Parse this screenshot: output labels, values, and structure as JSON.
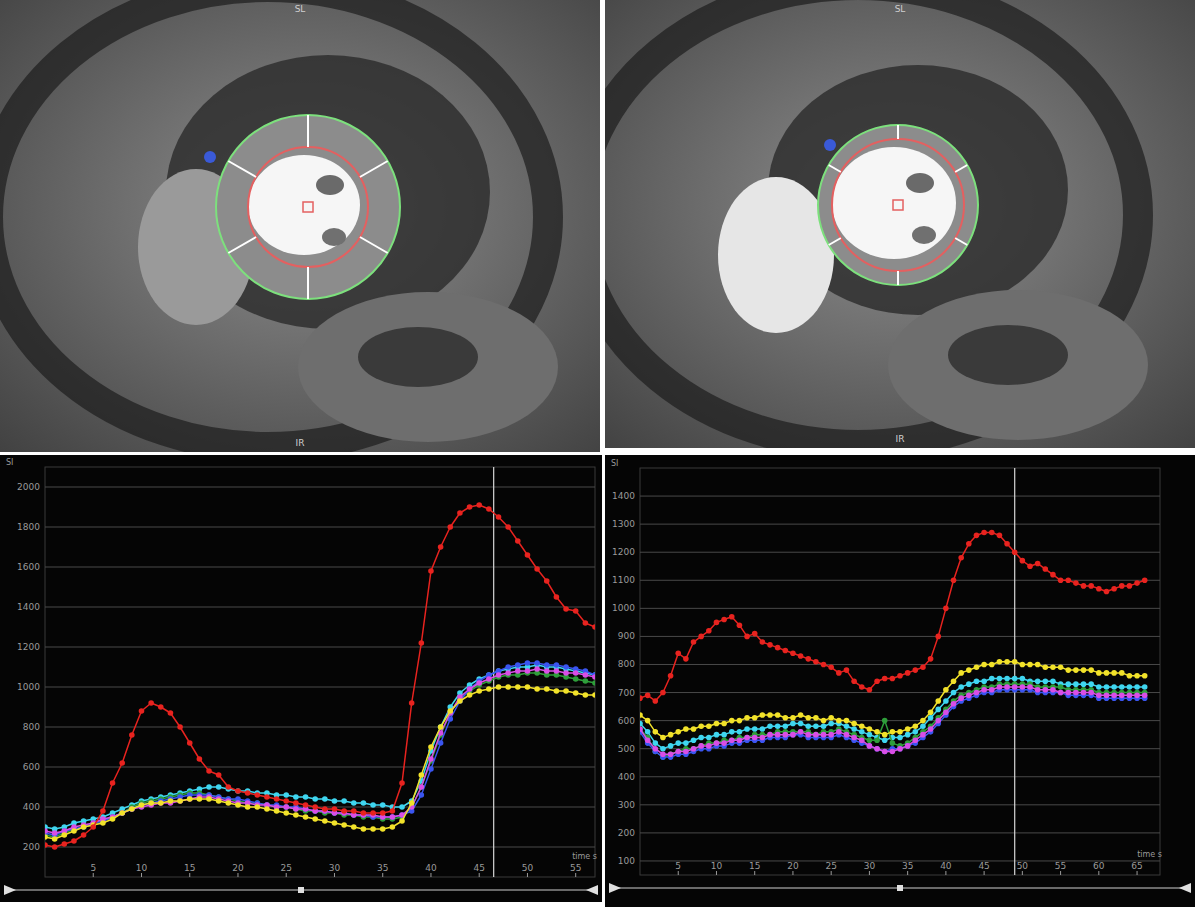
{
  "images": [
    {
      "labels": [
        "SL",
        "IR"
      ]
    },
    {
      "labels": [
        "SL",
        "IR"
      ]
    }
  ],
  "chart_data": [
    {
      "type": "line",
      "marker": "circle",
      "grid": true,
      "y_label": "SI",
      "x_label": "time s",
      "cursor_x": 46.5,
      "xlim": [
        0,
        57
      ],
      "xticks": [
        5,
        10,
        15,
        20,
        25,
        30,
        35,
        40,
        45,
        50,
        55
      ],
      "ylim": [
        50,
        2100
      ],
      "yticks": [
        200,
        400,
        600,
        800,
        1000,
        1200,
        1400,
        1600,
        1800,
        2000
      ],
      "x": [
        0,
        1,
        2,
        3,
        4,
        5,
        6,
        7,
        8,
        9,
        10,
        11,
        12,
        13,
        14,
        15,
        16,
        17,
        18,
        19,
        20,
        21,
        22,
        23,
        24,
        25,
        26,
        27,
        28,
        29,
        30,
        31,
        32,
        33,
        34,
        35,
        36,
        37,
        38,
        39,
        40,
        41,
        42,
        43,
        44,
        45,
        46,
        47,
        48,
        49,
        50,
        51,
        52,
        53,
        54,
        55,
        56,
        57
      ],
      "series": [
        {
          "color": "#3fd6f0",
          "values": [
            300,
            290,
            300,
            320,
            330,
            340,
            350,
            370,
            390,
            410,
            430,
            440,
            450,
            460,
            470,
            480,
            490,
            500,
            500,
            490,
            480,
            480,
            470,
            470,
            460,
            460,
            450,
            450,
            440,
            440,
            430,
            430,
            420,
            420,
            410,
            410,
            400,
            400,
            430,
            530,
            680,
            800,
            900,
            970,
            1010,
            1040,
            1060,
            1080,
            1090,
            1100,
            1100,
            1110,
            1100,
            1100,
            1090,
            1080,
            1070,
            1060
          ]
        },
        {
          "color": "#2e9e3a",
          "values": [
            260,
            250,
            270,
            290,
            300,
            310,
            330,
            350,
            370,
            400,
            420,
            430,
            440,
            450,
            460,
            470,
            470,
            460,
            450,
            440,
            430,
            420,
            420,
            410,
            400,
            400,
            390,
            380,
            380,
            370,
            370,
            360,
            360,
            350,
            350,
            340,
            340,
            350,
            400,
            500,
            630,
            760,
            870,
            940,
            980,
            1010,
            1030,
            1050,
            1060,
            1060,
            1070,
            1070,
            1060,
            1060,
            1050,
            1040,
            1030,
            1020
          ]
        },
        {
          "color": "#3a55f0",
          "values": [
            270,
            260,
            280,
            290,
            300,
            320,
            330,
            350,
            370,
            390,
            410,
            420,
            430,
            440,
            450,
            460,
            460,
            460,
            450,
            440,
            440,
            430,
            420,
            410,
            410,
            400,
            400,
            390,
            380,
            380,
            370,
            370,
            360,
            360,
            350,
            350,
            350,
            360,
            380,
            460,
            590,
            720,
            840,
            930,
            990,
            1030,
            1060,
            1080,
            1100,
            1110,
            1120,
            1120,
            1110,
            1110,
            1100,
            1090,
            1080,
            1060
          ]
        },
        {
          "color": "#d94ee6",
          "values": [
            280,
            270,
            280,
            300,
            310,
            320,
            340,
            350,
            370,
            390,
            400,
            410,
            420,
            420,
            430,
            440,
            450,
            450,
            440,
            430,
            420,
            420,
            410,
            410,
            400,
            400,
            390,
            390,
            380,
            380,
            370,
            370,
            360,
            360,
            360,
            350,
            350,
            360,
            400,
            500,
            640,
            770,
            870,
            950,
            990,
            1020,
            1040,
            1060,
            1070,
            1080,
            1080,
            1090,
            1080,
            1080,
            1070,
            1070,
            1060,
            1050
          ]
        },
        {
          "color": "#f2e22a",
          "values": [
            250,
            240,
            260,
            280,
            300,
            310,
            320,
            340,
            370,
            390,
            410,
            420,
            420,
            430,
            430,
            440,
            440,
            440,
            430,
            420,
            410,
            400,
            400,
            390,
            380,
            370,
            360,
            350,
            340,
            330,
            320,
            310,
            300,
            290,
            290,
            290,
            300,
            330,
            420,
            560,
            700,
            800,
            880,
            930,
            960,
            980,
            990,
            1000,
            1000,
            1000,
            1000,
            990,
            990,
            980,
            980,
            970,
            960,
            960
          ]
        },
        {
          "color": "#e8231f",
          "values": [
            210,
            200,
            215,
            230,
            260,
            300,
            380,
            520,
            620,
            760,
            880,
            920,
            900,
            870,
            800,
            720,
            640,
            580,
            560,
            500,
            480,
            470,
            460,
            450,
            440,
            430,
            420,
            410,
            400,
            390,
            390,
            380,
            380,
            370,
            370,
            370,
            380,
            520,
            920,
            1220,
            1580,
            1700,
            1800,
            1870,
            1900,
            1910,
            1890,
            1850,
            1800,
            1730,
            1660,
            1590,
            1530,
            1450,
            1390,
            1380,
            1320,
            1300
          ]
        }
      ]
    },
    {
      "type": "line",
      "marker": "circle",
      "grid": true,
      "y_label": "SI",
      "x_label": "time s",
      "cursor_x": 49,
      "xlim": [
        0,
        68
      ],
      "xticks": [
        5,
        10,
        15,
        20,
        25,
        30,
        35,
        40,
        45,
        50,
        55,
        60,
        65
      ],
      "ylim": [
        50,
        1500
      ],
      "yticks": [
        100,
        200,
        300,
        400,
        500,
        600,
        700,
        800,
        900,
        1000,
        1100,
        1200,
        1300,
        1400
      ],
      "x": [
        0,
        1,
        2,
        3,
        4,
        5,
        6,
        7,
        8,
        9,
        10,
        11,
        12,
        13,
        14,
        15,
        16,
        17,
        18,
        19,
        20,
        21,
        22,
        23,
        24,
        25,
        26,
        27,
        28,
        29,
        30,
        31,
        32,
        33,
        34,
        35,
        36,
        37,
        38,
        39,
        40,
        41,
        42,
        43,
        44,
        45,
        46,
        47,
        48,
        49,
        50,
        51,
        52,
        53,
        54,
        55,
        56,
        57,
        58,
        59,
        60,
        61,
        62,
        63,
        64,
        65,
        66
      ],
      "series": [
        {
          "color": "#3fd6f0",
          "values": [
            590,
            560,
            520,
            500,
            510,
            520,
            520,
            530,
            540,
            540,
            550,
            550,
            560,
            560,
            570,
            570,
            570,
            580,
            580,
            580,
            590,
            590,
            580,
            580,
            580,
            590,
            590,
            580,
            570,
            560,
            550,
            540,
            530,
            540,
            540,
            550,
            560,
            580,
            610,
            640,
            670,
            700,
            720,
            730,
            740,
            740,
            750,
            750,
            750,
            750,
            750,
            740,
            740,
            740,
            740,
            730,
            730,
            730,
            730,
            730,
            720,
            720,
            720,
            720,
            720,
            720,
            720
          ]
        },
        {
          "color": "#2e9e3a",
          "values": [
            570,
            540,
            490,
            470,
            480,
            490,
            500,
            500,
            510,
            520,
            520,
            530,
            530,
            540,
            540,
            550,
            550,
            550,
            560,
            560,
            560,
            560,
            560,
            550,
            560,
            560,
            570,
            560,
            550,
            540,
            530,
            530,
            600,
            520,
            510,
            520,
            540,
            560,
            580,
            610,
            640,
            670,
            690,
            700,
            710,
            720,
            720,
            730,
            730,
            730,
            730,
            730,
            720,
            720,
            720,
            720,
            710,
            710,
            710,
            710,
            700,
            700,
            700,
            700,
            700,
            700,
            700
          ]
        },
        {
          "color": "#3a55f0",
          "values": [
            560,
            520,
            490,
            470,
            470,
            480,
            480,
            490,
            500,
            500,
            510,
            510,
            520,
            520,
            530,
            530,
            530,
            540,
            540,
            540,
            550,
            550,
            540,
            540,
            540,
            540,
            550,
            540,
            530,
            520,
            510,
            500,
            490,
            500,
            500,
            510,
            520,
            540,
            560,
            590,
            620,
            650,
            670,
            680,
            690,
            700,
            700,
            710,
            710,
            710,
            710,
            710,
            700,
            700,
            700,
            700,
            690,
            690,
            690,
            690,
            680,
            680,
            680,
            680,
            680,
            680,
            680
          ]
        },
        {
          "color": "#d94ee6",
          "values": [
            570,
            530,
            500,
            480,
            480,
            490,
            490,
            500,
            510,
            510,
            520,
            520,
            530,
            530,
            540,
            540,
            540,
            550,
            550,
            550,
            550,
            560,
            550,
            550,
            550,
            550,
            560,
            550,
            540,
            530,
            510,
            500,
            490,
            490,
            500,
            510,
            530,
            550,
            570,
            600,
            630,
            660,
            680,
            690,
            700,
            710,
            710,
            720,
            720,
            720,
            720,
            720,
            710,
            710,
            710,
            700,
            700,
            700,
            700,
            700,
            690,
            690,
            690,
            690,
            690,
            690,
            690
          ]
        },
        {
          "color": "#f2e22a",
          "values": [
            620,
            600,
            560,
            540,
            550,
            560,
            570,
            570,
            580,
            580,
            590,
            590,
            600,
            600,
            610,
            610,
            620,
            620,
            620,
            610,
            610,
            620,
            610,
            610,
            600,
            610,
            600,
            600,
            590,
            580,
            570,
            560,
            550,
            560,
            560,
            570,
            580,
            600,
            630,
            670,
            710,
            740,
            770,
            780,
            790,
            800,
            800,
            810,
            810,
            810,
            800,
            800,
            800,
            790,
            790,
            790,
            780,
            780,
            780,
            780,
            770,
            770,
            770,
            770,
            760,
            760,
            760
          ]
        },
        {
          "color": "#e8231f",
          "values": [
            680,
            690,
            670,
            700,
            760,
            840,
            820,
            880,
            900,
            920,
            950,
            960,
            970,
            940,
            900,
            910,
            880,
            870,
            860,
            850,
            840,
            830,
            820,
            810,
            800,
            790,
            770,
            780,
            740,
            720,
            710,
            740,
            750,
            750,
            760,
            770,
            780,
            790,
            820,
            900,
            1000,
            1100,
            1180,
            1230,
            1260,
            1270,
            1270,
            1260,
            1230,
            1200,
            1170,
            1150,
            1160,
            1140,
            1120,
            1100,
            1100,
            1090,
            1080,
            1080,
            1070,
            1060,
            1070,
            1080,
            1080,
            1090,
            1100
          ]
        }
      ]
    }
  ]
}
